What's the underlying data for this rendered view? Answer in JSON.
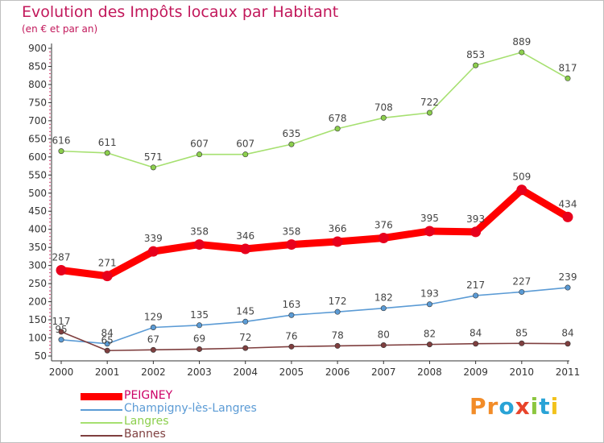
{
  "title": "Evolution des Impôts locaux par Habitant",
  "subtitle": "(en € et par an)",
  "brand": {
    "text": "Proxiti",
    "letters": [
      {
        "ch": "P",
        "color": "#f28c28"
      },
      {
        "ch": "r",
        "color": "#f28c28"
      },
      {
        "ch": "o",
        "color": "#29a3d6"
      },
      {
        "ch": "x",
        "color": "#e8432a"
      },
      {
        "ch": "i",
        "color": "#8cc63f"
      },
      {
        "ch": "t",
        "color": "#29a3d6"
      },
      {
        "ch": "i",
        "color": "#f2c21b"
      }
    ]
  },
  "chart_data": {
    "type": "line",
    "title": "Evolution des Impôts locaux par Habitant",
    "subtitle": "(en € et par an)",
    "x": [
      "2000",
      "2001",
      "2002",
      "2003",
      "2004",
      "2005",
      "2006",
      "2007",
      "2008",
      "2009",
      "2010",
      "2011"
    ],
    "ylim": [
      50,
      900
    ],
    "yticks": [
      50,
      100,
      150,
      200,
      250,
      300,
      350,
      400,
      450,
      500,
      550,
      600,
      650,
      700,
      750,
      800,
      850,
      900
    ],
    "grid": false,
    "legend_position": "bottom-left",
    "series": [
      {
        "name": "PEIGNEY",
        "color": "#ff0000",
        "marker": "#e8001c",
        "label_color": "#cc0066",
        "thick": true,
        "values": [
          287,
          271,
          339,
          358,
          346,
          358,
          366,
          376,
          395,
          393,
          509,
          434
        ]
      },
      {
        "name": "Champigny-lès-Langres",
        "color": "#5b9bd5",
        "marker": "#5b9bd5",
        "label_color": "#5b9bd5",
        "thick": false,
        "values": [
          95,
          84,
          129,
          135,
          145,
          163,
          172,
          182,
          193,
          217,
          227,
          239
        ]
      },
      {
        "name": "Langres",
        "color": "#a6e070",
        "marker": "#8ccf4d",
        "label_color": "#8ccf4d",
        "thick": false,
        "values": [
          616,
          611,
          571,
          607,
          607,
          635,
          678,
          708,
          722,
          853,
          889,
          817
        ]
      },
      {
        "name": "Bannes",
        "color": "#7f3f3f",
        "marker": "#7f3f3f",
        "label_color": "#7f3f3f",
        "thick": false,
        "values": [
          117,
          65,
          67,
          69,
          72,
          76,
          78,
          80,
          82,
          84,
          85,
          84
        ]
      }
    ]
  }
}
